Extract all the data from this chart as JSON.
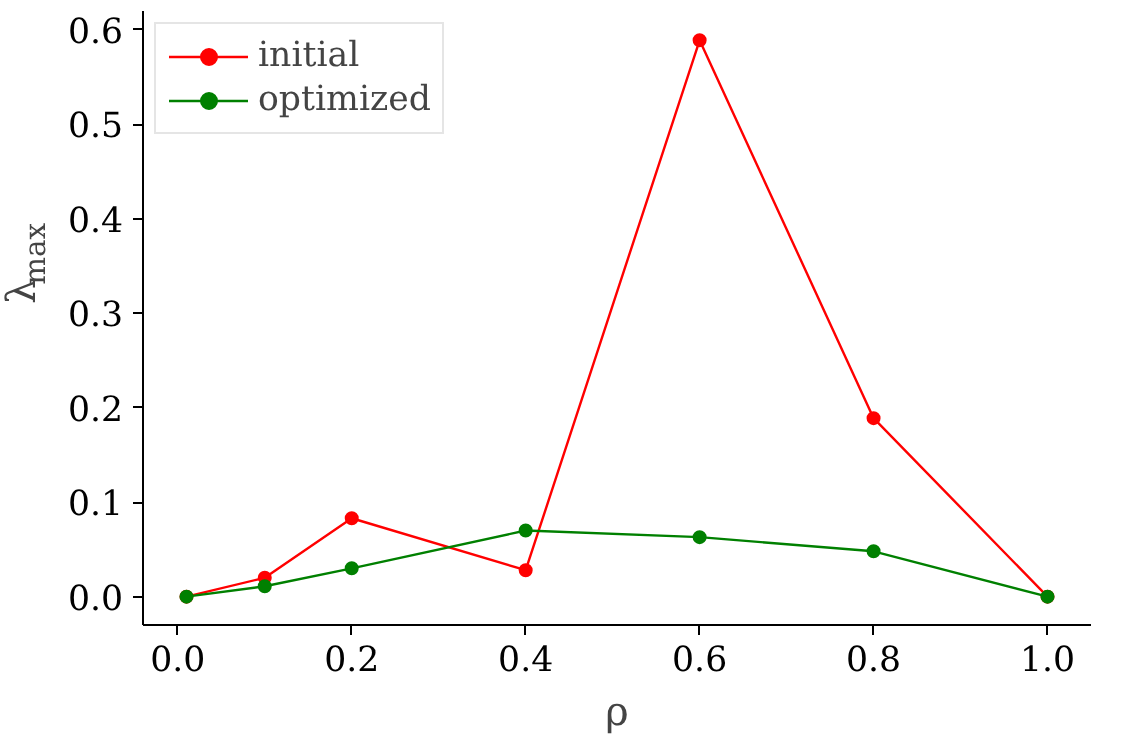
{
  "chart_data": {
    "type": "line",
    "xlabel": "ρ",
    "ylabel": "λ$_{max}$",
    "x": [
      0.01,
      0.1,
      0.2,
      0.4,
      0.6,
      0.8,
      1.0
    ],
    "series": [
      {
        "name": "initial",
        "color": "#ff0000",
        "values": [
          0.0,
          0.02,
          0.083,
          0.028,
          0.589,
          0.189,
          0.0
        ]
      },
      {
        "name": "optimized",
        "color": "#008000",
        "values": [
          0.0,
          0.011,
          0.03,
          0.07,
          0.063,
          0.048,
          0.0
        ]
      }
    ],
    "xlim": [
      -0.04,
      1.05
    ],
    "ylim": [
      -0.03,
      0.62
    ],
    "xticks": [
      {
        "value": 0.0,
        "label": "0.0"
      },
      0.2,
      0.4,
      0.6,
      0.8,
      {
        "value": 1.0,
        "label": "1.0"
      }
    ],
    "yticks": [
      {
        "value": 0.0,
        "label": "0.0"
      },
      0.1,
      0.2,
      0.3,
      0.4,
      0.5,
      0.6
    ],
    "legend": "top left",
    "marker": "circle",
    "line_style": "solid",
    "grid": false
  }
}
